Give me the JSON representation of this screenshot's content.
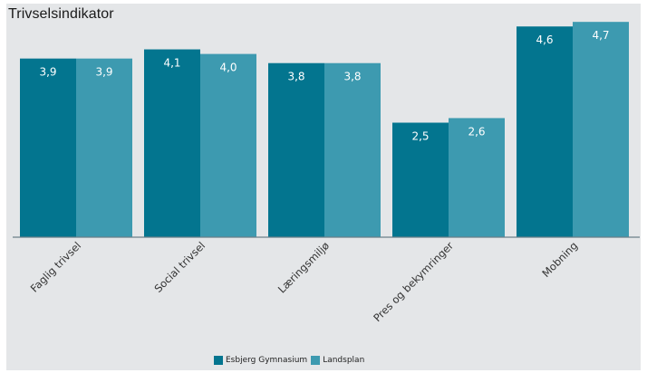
{
  "chart_data": {
    "type": "bar",
    "title": "Trivselsindikator",
    "categories": [
      "Faglig trivsel",
      "Social trivsel",
      "Læringsmiljø",
      "Pres og bekymringer",
      "Mobning"
    ],
    "series": [
      {
        "name": "Esbjerg Gymnasium",
        "values": [
          3.9,
          4.1,
          3.8,
          2.5,
          4.6
        ],
        "labels": [
          "3,9",
          "4,1",
          "3,8",
          "2,5",
          "4,6"
        ],
        "color": "#03758f"
      },
      {
        "name": "Landsplan",
        "values": [
          3.9,
          4.0,
          3.8,
          2.6,
          4.7
        ],
        "labels": [
          "3,9",
          "4,0",
          "3,8",
          "2,6",
          "4,7"
        ],
        "color": "#3d9ab0"
      }
    ],
    "xlabel": "",
    "ylabel": "",
    "ylim": [
      0,
      5
    ],
    "grid": false,
    "legend_position": "bottom"
  },
  "colors": {
    "background": "#e4e6e8",
    "axis": "#6b7f88"
  }
}
